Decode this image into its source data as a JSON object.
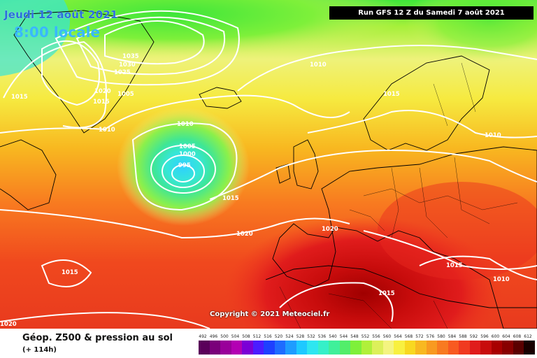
{
  "header": {
    "date": "Jeudi 12 août 2021",
    "time": "8:00 locale",
    "run": "Run GFS 12 Z du Samedi 7 août 2021"
  },
  "copyright": "Copyright © 2021 Meteociel.fr",
  "footer": {
    "title": "Géop. Z500 & pression au sol",
    "subtitle": "(+ 114h)"
  },
  "scale": {
    "ticks": [
      "492",
      "496",
      "500",
      "504",
      "508",
      "512",
      "516",
      "520",
      "524",
      "528",
      "532",
      "536",
      "540",
      "544",
      "548",
      "552",
      "556",
      "560",
      "564",
      "568",
      "572",
      "576",
      "580",
      "584",
      "588",
      "592",
      "596",
      "600",
      "604",
      "608",
      "612"
    ],
    "colors": [
      "#5a005a",
      "#7a007a",
      "#99009a",
      "#b300b3",
      "#7b00d6",
      "#4b1cff",
      "#1e40ff",
      "#1e6cff",
      "#1e9cff",
      "#1ec9ff",
      "#2ee6f0",
      "#36f0c8",
      "#3ff09a",
      "#52ee6a",
      "#7ef03a",
      "#b0f03a",
      "#dcf05a",
      "#f4f480",
      "#f8f040",
      "#f8d820",
      "#f8b820",
      "#f89a20",
      "#f87a20",
      "#f85a20",
      "#f03a20",
      "#e01c1c",
      "#c80c0c",
      "#a80000",
      "#880000",
      "#5a0000",
      "#180000"
    ]
  },
  "isobars": [
    "1035",
    "1030",
    "1025",
    "1020",
    "1015",
    "1005",
    "1010",
    "1015",
    "1010",
    "1005",
    "1000",
    "995",
    "1010",
    "1010",
    "1015",
    "1015",
    "1020",
    "1020",
    "1015",
    "1015",
    "1010",
    "1015",
    "1020"
  ]
}
